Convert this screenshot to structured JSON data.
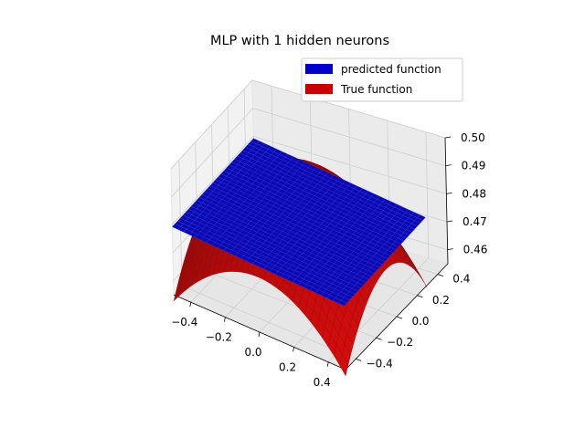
{
  "chart_data": {
    "type": "surface3d",
    "title": "MLP with 1 hidden neurons",
    "x_ticks": [
      "−0.4",
      "−0.2",
      "0.0",
      "0.2",
      "0.4"
    ],
    "y_ticks": [
      "−0.4",
      "−0.2",
      "0.0",
      "0.2",
      "0.4"
    ],
    "z_ticks": [
      "0.46",
      "0.47",
      "0.48",
      "0.49",
      "0.50"
    ],
    "xlim": [
      -0.5,
      0.5
    ],
    "ylim": [
      -0.5,
      0.5
    ],
    "zlim": [
      0.455,
      0.5
    ],
    "grid": true,
    "legend_position": "top-right",
    "series": [
      {
        "name": "predicted function",
        "color": "#0000c8",
        "surface": "flat plane, z ≈ 0.478 over x,y in [-0.5, 0.5]"
      },
      {
        "name": "True function",
        "color": "#c80000",
        "surface": "dome peaking near 0.496 at (0, 0), falling to about 0.455 at the corners"
      }
    ]
  }
}
